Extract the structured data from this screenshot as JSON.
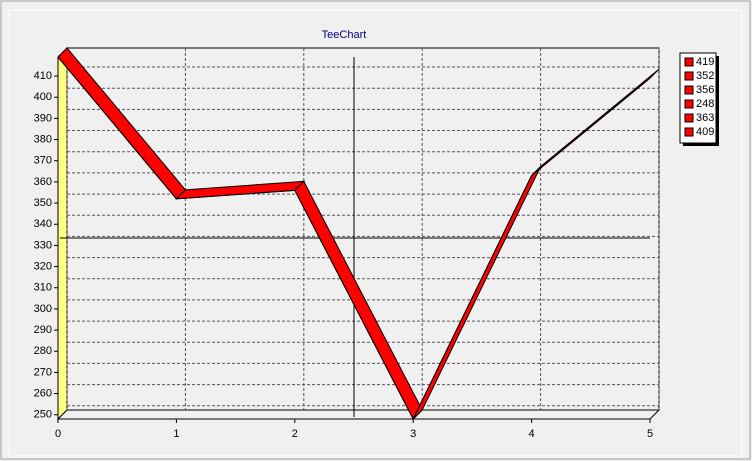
{
  "chart_data": {
    "type": "line",
    "title": "TeeChart",
    "x": [
      0,
      1,
      2,
      3,
      4,
      5
    ],
    "values": [
      419,
      352,
      356,
      248,
      363,
      409
    ],
    "color": "#ff0000",
    "xlim": [
      0,
      5
    ],
    "xticks": [
      0,
      1,
      2,
      3,
      4,
      5
    ],
    "ylim": [
      248,
      419
    ],
    "yticks": [
      250,
      260,
      270,
      280,
      290,
      300,
      310,
      320,
      330,
      340,
      350,
      360,
      370,
      380,
      390,
      400,
      410
    ],
    "grid": true,
    "legend": "right"
  }
}
